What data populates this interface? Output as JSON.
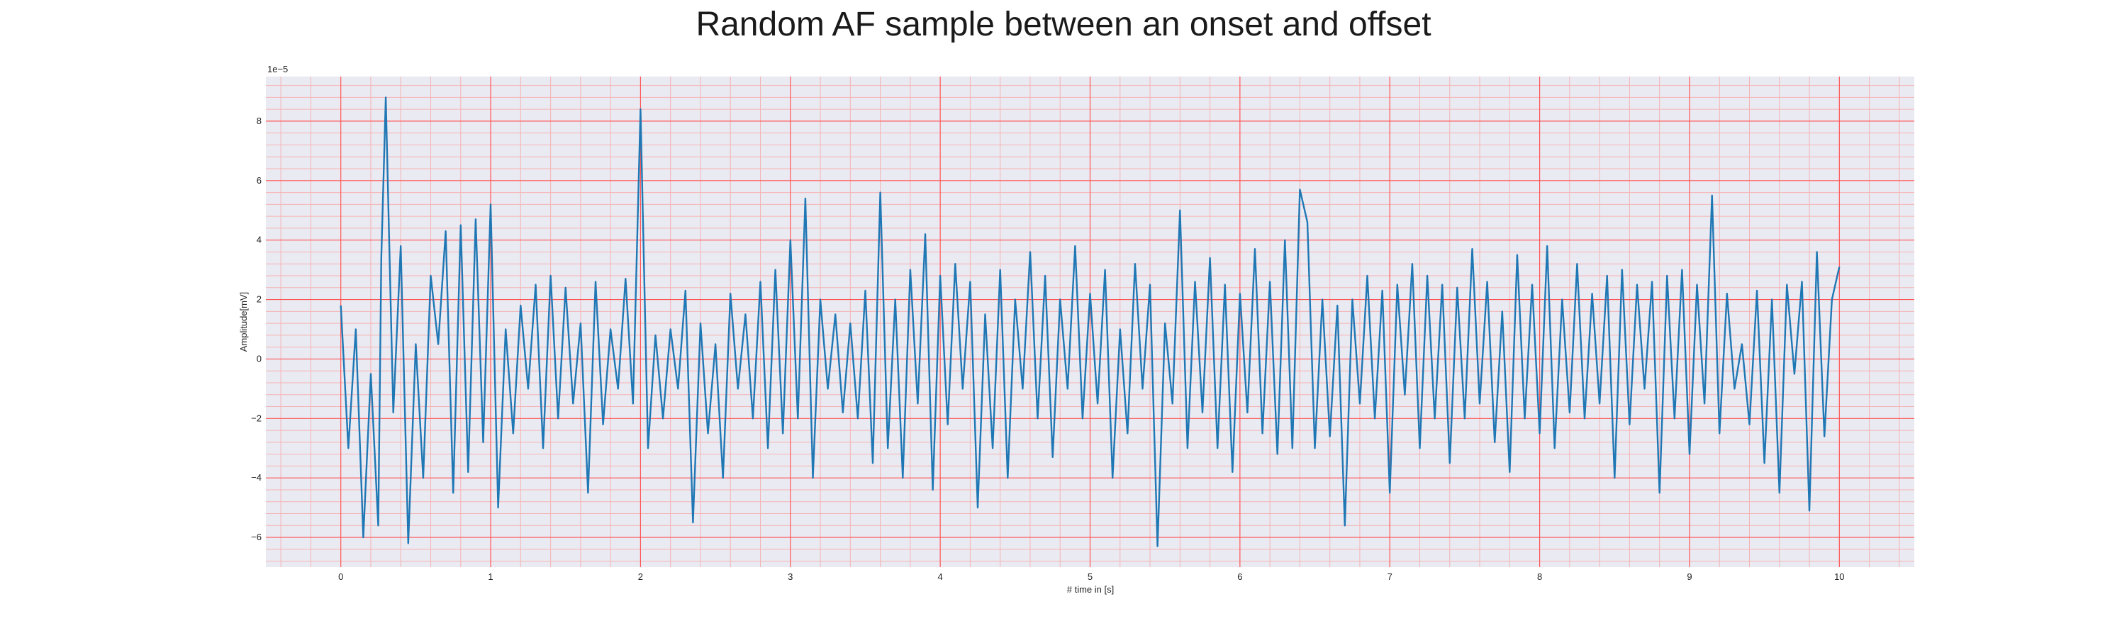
{
  "chart_data": {
    "type": "line",
    "title": "Random AF sample between an onset and offset",
    "xlabel": "# time in [s]",
    "ylabel": "Amplitude[mV]",
    "y_scale_factor": "1e−5",
    "xlim": [
      -0.5,
      10.5
    ],
    "ylim": [
      -7.0,
      9.5
    ],
    "x_ticks": [
      0,
      1,
      2,
      3,
      4,
      5,
      6,
      7,
      8,
      9,
      10
    ],
    "y_ticks": [
      -6,
      -4,
      -2,
      0,
      2,
      4,
      6,
      8
    ],
    "grid": {
      "major": true,
      "minor": true
    },
    "colors": {
      "line": "#1f77b4",
      "background": "#eaeaf2",
      "major_grid": "#ff5555",
      "minor_grid": "#f5b3b3"
    },
    "series": [
      {
        "x": [
          0.0,
          0.05,
          0.1,
          0.15,
          0.2,
          0.25,
          0.27,
          0.3,
          0.35,
          0.4,
          0.45,
          0.5,
          0.55,
          0.6,
          0.65,
          0.7,
          0.75,
          0.8,
          0.85,
          0.9,
          0.95,
          1.0,
          1.05,
          1.1,
          1.15,
          1.2,
          1.25,
          1.3,
          1.35,
          1.4,
          1.45,
          1.5,
          1.55,
          1.6,
          1.65,
          1.7,
          1.75,
          1.8,
          1.85,
          1.9,
          1.95,
          2.0,
          2.05,
          2.1,
          2.15,
          2.2,
          2.25,
          2.3,
          2.35,
          2.4,
          2.45,
          2.5,
          2.55,
          2.6,
          2.65,
          2.7,
          2.75,
          2.8,
          2.85,
          2.9,
          2.95,
          3.0,
          3.05,
          3.1,
          3.15,
          3.2,
          3.25,
          3.3,
          3.35,
          3.4,
          3.45,
          3.5,
          3.55,
          3.6,
          3.65,
          3.7,
          3.75,
          3.8,
          3.85,
          3.9,
          3.95,
          4.0,
          4.05,
          4.1,
          4.15,
          4.2,
          4.25,
          4.3,
          4.35,
          4.4,
          4.45,
          4.5,
          4.55,
          4.6,
          4.65,
          4.7,
          4.75,
          4.8,
          4.85,
          4.9,
          4.95,
          5.0,
          5.05,
          5.1,
          5.15,
          5.2,
          5.25,
          5.3,
          5.35,
          5.4,
          5.45,
          5.5,
          5.55,
          5.6,
          5.65,
          5.7,
          5.75,
          5.8,
          5.85,
          5.9,
          5.95,
          6.0,
          6.05,
          6.1,
          6.15,
          6.2,
          6.25,
          6.3,
          6.35,
          6.4,
          6.45,
          6.5,
          6.55,
          6.6,
          6.65,
          6.7,
          6.75,
          6.8,
          6.85,
          6.9,
          6.95,
          7.0,
          7.05,
          7.1,
          7.15,
          7.2,
          7.25,
          7.3,
          7.35,
          7.4,
          7.45,
          7.5,
          7.55,
          7.6,
          7.65,
          7.7,
          7.75,
          7.8,
          7.85,
          7.9,
          7.95,
          8.0,
          8.05,
          8.1,
          8.15,
          8.2,
          8.25,
          8.3,
          8.35,
          8.4,
          8.45,
          8.5,
          8.55,
          8.6,
          8.65,
          8.7,
          8.75,
          8.8,
          8.85,
          8.9,
          8.95,
          9.0,
          9.05,
          9.1,
          9.15,
          9.2,
          9.25,
          9.3,
          9.35,
          9.4,
          9.45,
          9.5,
          9.55,
          9.6,
          9.65,
          9.7,
          9.75,
          9.8,
          9.85,
          9.9,
          9.95,
          10.0
        ],
        "values": [
          1.8,
          -3.0,
          1.0,
          -6.0,
          -0.5,
          -5.6,
          3.4,
          8.8,
          -1.8,
          3.8,
          -6.2,
          0.5,
          -4.0,
          2.8,
          0.5,
          4.3,
          -4.5,
          4.5,
          -3.8,
          4.7,
          -2.8,
          5.2,
          -5.0,
          1.0,
          -2.5,
          1.8,
          -1.0,
          2.5,
          -3.0,
          2.8,
          -2.0,
          2.4,
          -1.5,
          1.2,
          -4.5,
          2.6,
          -2.2,
          1.0,
          -1.0,
          2.7,
          -1.5,
          8.4,
          -3.0,
          0.8,
          -2.0,
          1.0,
          -1.0,
          2.3,
          -5.5,
          1.2,
          -2.5,
          0.5,
          -4.0,
          2.2,
          -1.0,
          1.5,
          -2.0,
          2.6,
          -3.0,
          3.0,
          -2.5,
          4.0,
          -2.0,
          5.4,
          -4.0,
          2.0,
          -1.0,
          1.5,
          -1.8,
          1.2,
          -2.0,
          2.3,
          -3.5,
          5.6,
          -3.0,
          2.0,
          -4.0,
          3.0,
          -1.5,
          4.2,
          -4.4,
          2.8,
          -2.2,
          3.2,
          -1.0,
          2.6,
          -5.0,
          1.5,
          -3.0,
          3.0,
          -4.0,
          2.0,
          -1.0,
          3.6,
          -2.0,
          2.8,
          -3.3,
          2.0,
          -1.0,
          3.8,
          -2.0,
          2.2,
          -1.5,
          3.0,
          -4.0,
          1.0,
          -2.5,
          3.2,
          -1.0,
          2.5,
          -6.3,
          1.2,
          -1.5,
          5.0,
          -3.0,
          2.6,
          -1.8,
          3.4,
          -3.0,
          2.5,
          -3.8,
          2.2,
          -1.8,
          3.7,
          -2.5,
          2.6,
          -3.2,
          4.0,
          -3.0,
          5.7,
          4.6,
          -3.0,
          2.0,
          -2.6,
          1.8,
          -5.6,
          2.0,
          -1.5,
          2.8,
          -2.0,
          2.3,
          -4.5,
          2.5,
          -1.2,
          3.2,
          -3.0,
          2.8,
          -2.0,
          2.5,
          -3.5,
          2.4,
          -2.0,
          3.7,
          -1.5,
          2.6,
          -2.8,
          1.6,
          -3.8,
          3.5,
          -2.0,
          2.5,
          -2.5,
          3.8,
          -3.0,
          2.0,
          -1.8,
          3.2,
          -2.0,
          2.2,
          -1.5,
          2.8,
          -4.0,
          3.0,
          -2.2,
          2.5,
          -1.0,
          2.6,
          -4.5,
          2.8,
          -2.0,
          3.0,
          -3.2,
          2.5,
          -1.5,
          5.5,
          -2.5,
          2.2,
          -1.0,
          0.5,
          -2.2,
          2.3,
          -3.5,
          2.0,
          -4.5,
          2.5,
          -0.5,
          2.6,
          -5.1,
          3.6,
          -2.6,
          2.0,
          3.1
        ]
      }
    ]
  }
}
